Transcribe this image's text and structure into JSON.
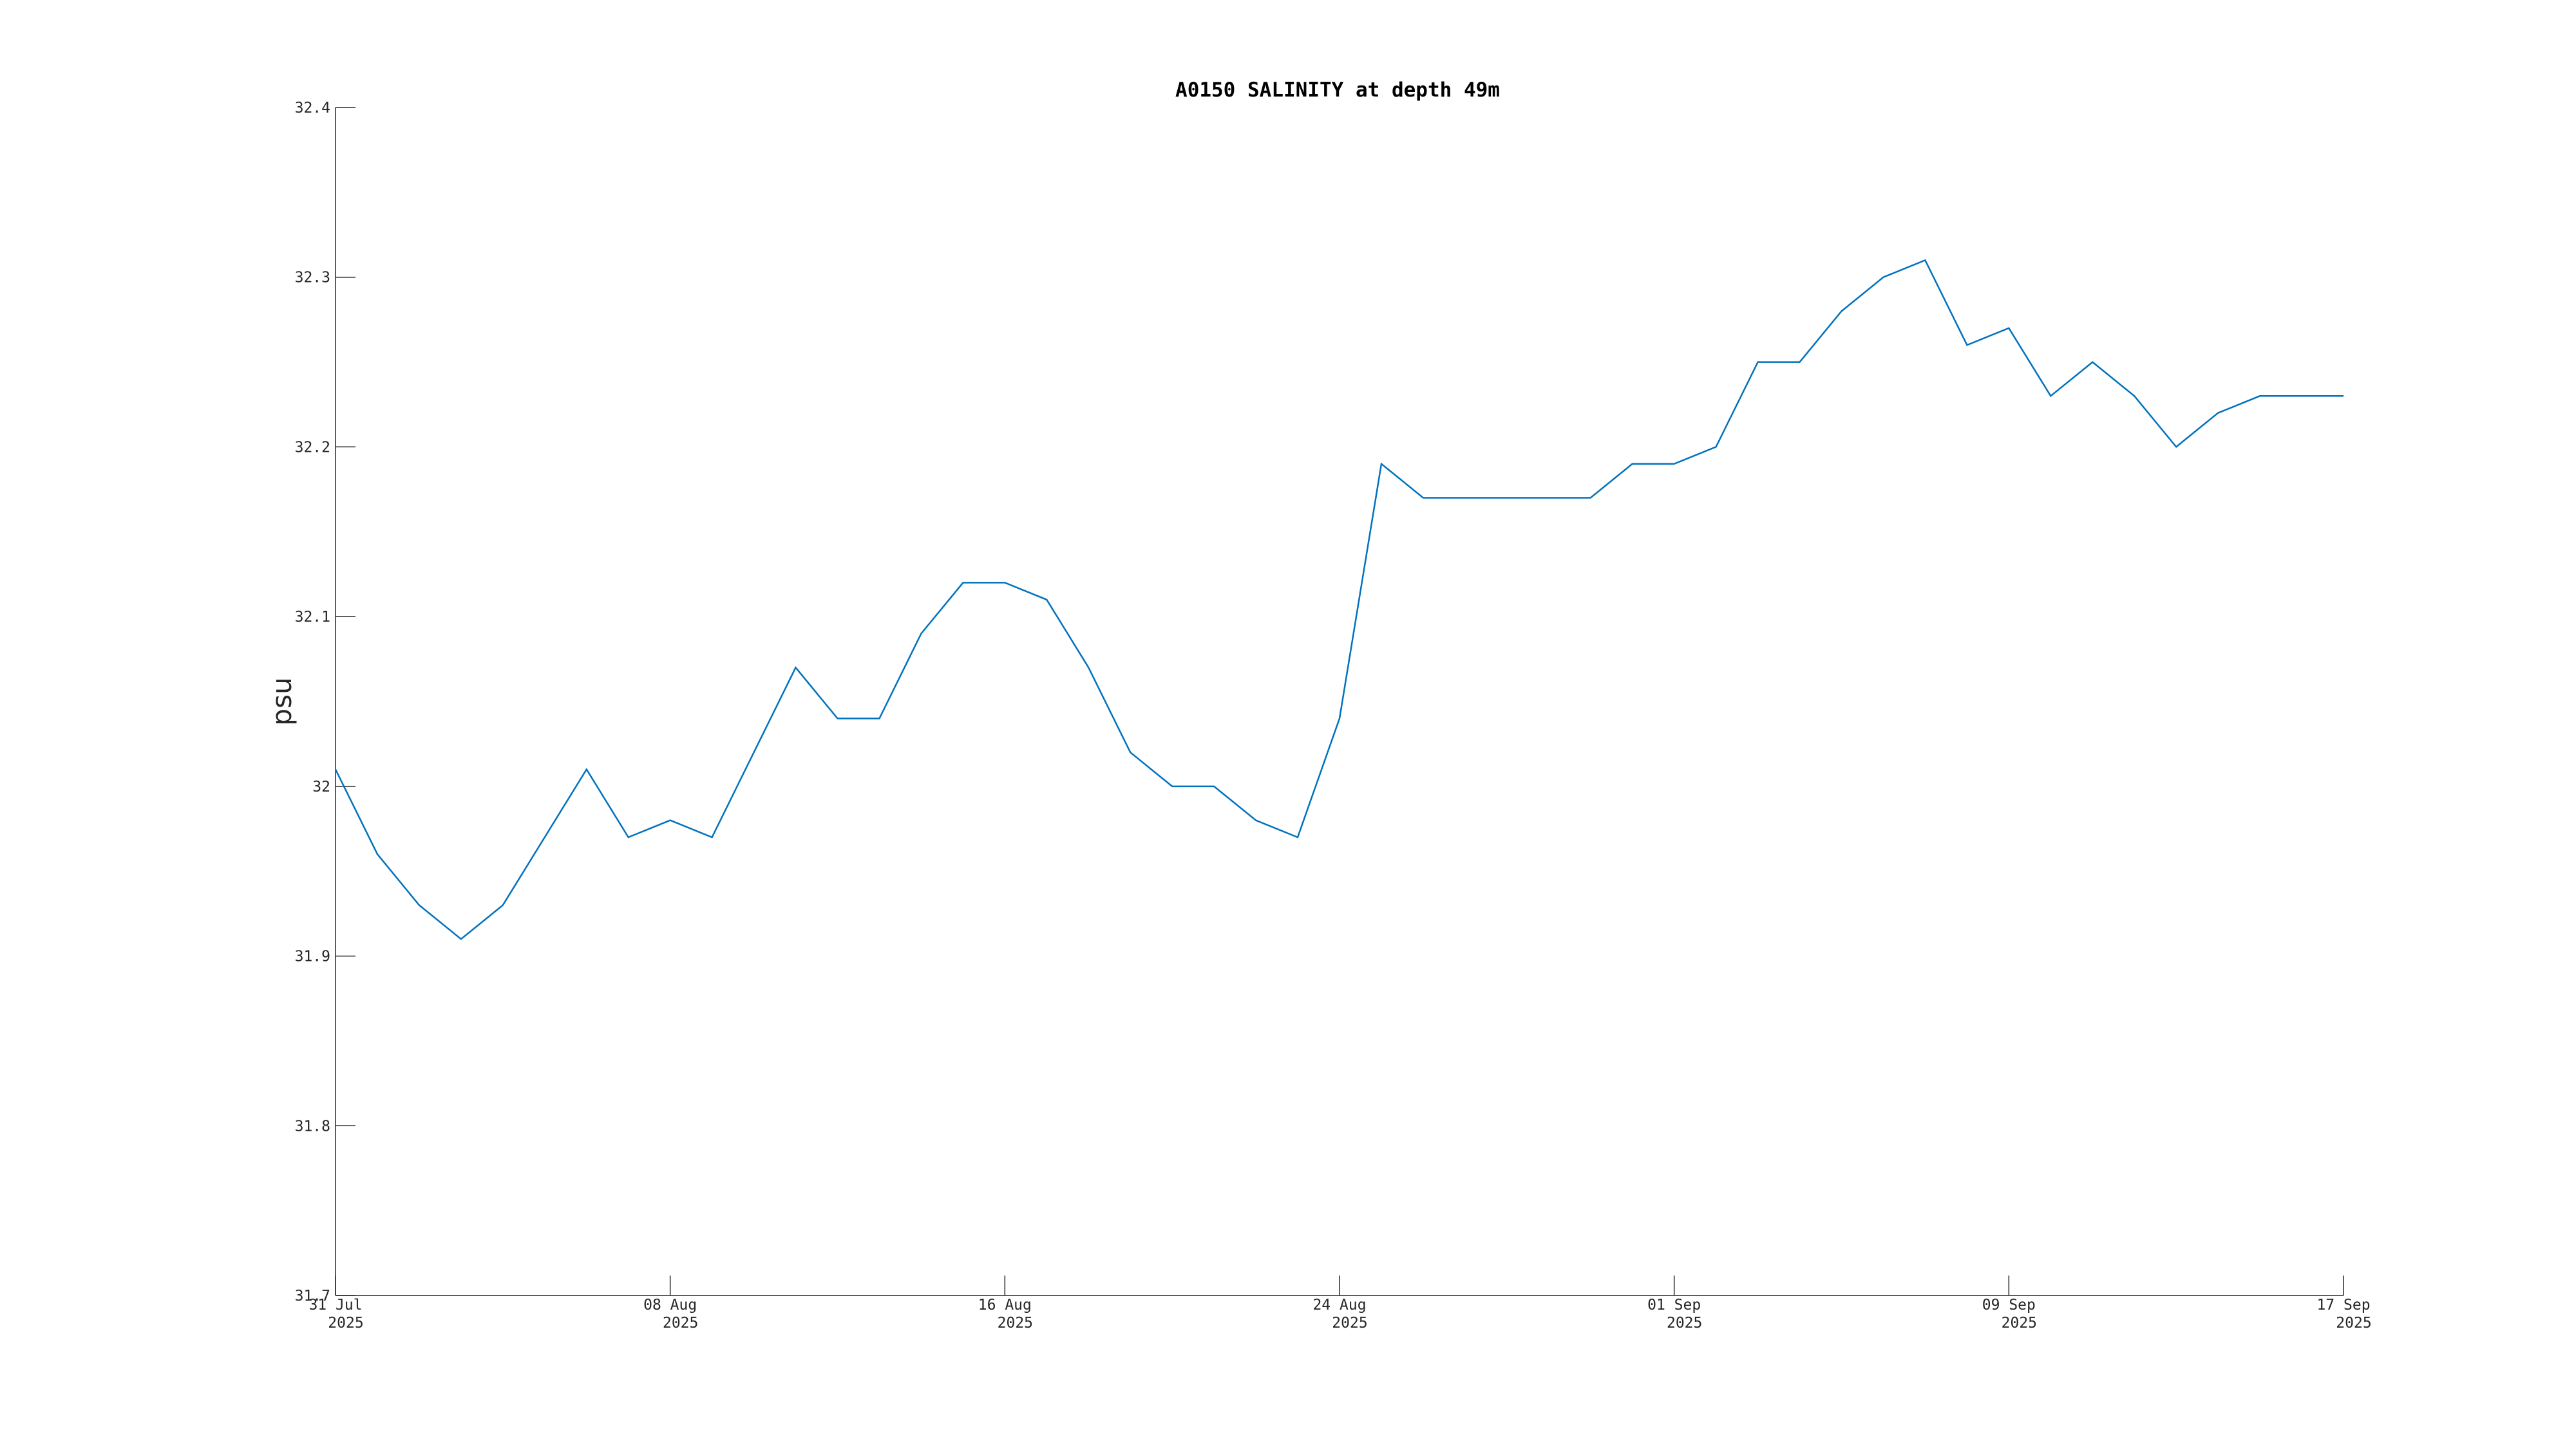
{
  "chart_data": {
    "type": "line",
    "title": "A0150 SALINITY at depth 49m",
    "ylabel": "psu",
    "x": [
      "2025-07-31",
      "2025-08-01",
      "2025-08-02",
      "2025-08-03",
      "2025-08-04",
      "2025-08-05",
      "2025-08-06",
      "2025-08-07",
      "2025-08-08",
      "2025-08-09",
      "2025-08-10",
      "2025-08-11",
      "2025-08-12",
      "2025-08-13",
      "2025-08-14",
      "2025-08-15",
      "2025-08-16",
      "2025-08-17",
      "2025-08-18",
      "2025-08-19",
      "2025-08-20",
      "2025-08-21",
      "2025-08-22",
      "2025-08-23",
      "2025-08-24",
      "2025-08-25",
      "2025-08-26",
      "2025-08-27",
      "2025-08-28",
      "2025-08-29",
      "2025-08-30",
      "2025-08-31",
      "2025-09-01",
      "2025-09-02",
      "2025-09-03",
      "2025-09-04",
      "2025-09-05",
      "2025-09-06",
      "2025-09-07",
      "2025-09-08",
      "2025-09-09",
      "2025-09-10",
      "2025-09-11",
      "2025-09-12",
      "2025-09-13",
      "2025-09-14",
      "2025-09-15",
      "2025-09-16",
      "2025-09-17"
    ],
    "series": [
      {
        "name": "SALINITY",
        "color": "#0072bd",
        "values": [
          32.01,
          31.96,
          31.93,
          31.91,
          31.93,
          31.97,
          32.01,
          31.97,
          31.98,
          31.97,
          32.02,
          32.07,
          32.04,
          32.04,
          32.09,
          32.12,
          32.12,
          32.11,
          32.07,
          32.02,
          32.0,
          32.0,
          31.98,
          31.97,
          32.04,
          32.19,
          32.17,
          32.17,
          32.17,
          32.17,
          32.17,
          32.19,
          32.19,
          32.2,
          32.25,
          32.25,
          32.28,
          32.3,
          32.31,
          32.26,
          32.27,
          32.23,
          32.25,
          32.23,
          32.2,
          32.22,
          32.23,
          32.23,
          32.23
        ]
      }
    ],
    "xlim": [
      "2025-07-31",
      "2025-09-17"
    ],
    "xticks": [
      {
        "value": "2025-07-31",
        "label": [
          "31 Jul",
          "2025"
        ]
      },
      {
        "value": "2025-08-08",
        "label": [
          "08 Aug",
          "2025"
        ]
      },
      {
        "value": "2025-08-16",
        "label": [
          "16 Aug",
          "2025"
        ]
      },
      {
        "value": "2025-08-24",
        "label": [
          "24 Aug",
          "2025"
        ]
      },
      {
        "value": "2025-09-01",
        "label": [
          "01 Sep",
          "2025"
        ]
      },
      {
        "value": "2025-09-09",
        "label": [
          "09 Sep",
          "2025"
        ]
      },
      {
        "value": "2025-09-17",
        "label": [
          "17 Sep",
          "2025"
        ]
      }
    ],
    "ylim": [
      31.7,
      32.4
    ],
    "yticks": [
      31.7,
      31.8,
      31.9,
      32,
      32.1,
      32.2,
      32.3,
      32.4
    ],
    "grid": false
  }
}
